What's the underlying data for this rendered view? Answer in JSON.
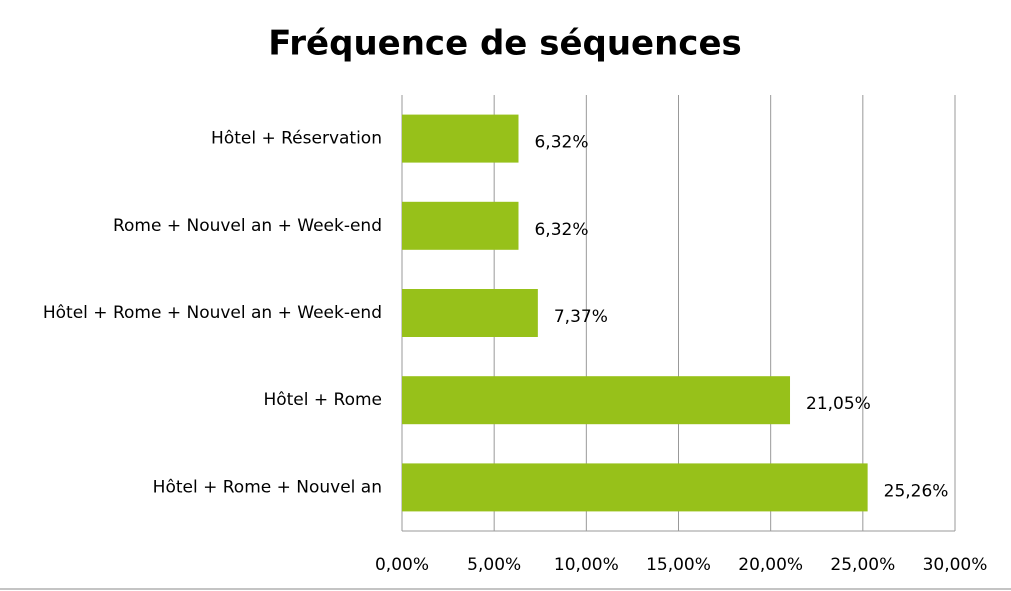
{
  "chart_data": {
    "type": "bar",
    "orientation": "horizontal",
    "title": "Fréquence de séquences",
    "categories": [
      "Hôtel + Réservation",
      "Rome + Nouvel an + Week-end",
      "Hôtel + Rome + Nouvel an + Week-end",
      "Hôtel + Rome",
      "Hôtel + Rome + Nouvel an"
    ],
    "values": [
      6.32,
      6.32,
      7.37,
      21.05,
      25.26
    ],
    "value_labels": [
      "6,32%",
      "6,32%",
      "7,37%",
      "21,05%",
      "25,26%"
    ],
    "color": "#97c11a",
    "xlim": [
      0,
      30
    ],
    "xticks": [
      {
        "value": 0,
        "label": "0,00%"
      },
      {
        "value": 5,
        "label": "5,00%"
      },
      {
        "value": 10,
        "label": "10,00%"
      },
      {
        "value": 15,
        "label": "15,00%"
      },
      {
        "value": 20,
        "label": "20,00%"
      },
      {
        "value": 25,
        "label": "25,00%"
      },
      {
        "value": 30,
        "label": "30,00%"
      }
    ],
    "grid": true
  }
}
